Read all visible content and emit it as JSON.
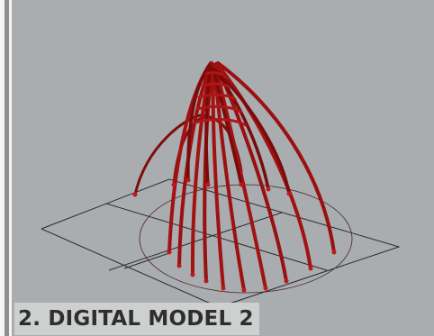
{
  "caption": "2. DIGITAL MODEL 2",
  "colors": {
    "viewport_background": "#a9adb0",
    "arch_stroke": "#a11212",
    "arch_shadow": "#5a0a0a",
    "grid_line": "#2b2b2b",
    "caption_background": "#cdd0cf",
    "caption_text": "#2e2e2e"
  },
  "scene": {
    "type": "3d-viewport",
    "object": "parabolic-arch-structure",
    "ground": "rectangular-grid-with-ellipse-outline"
  }
}
